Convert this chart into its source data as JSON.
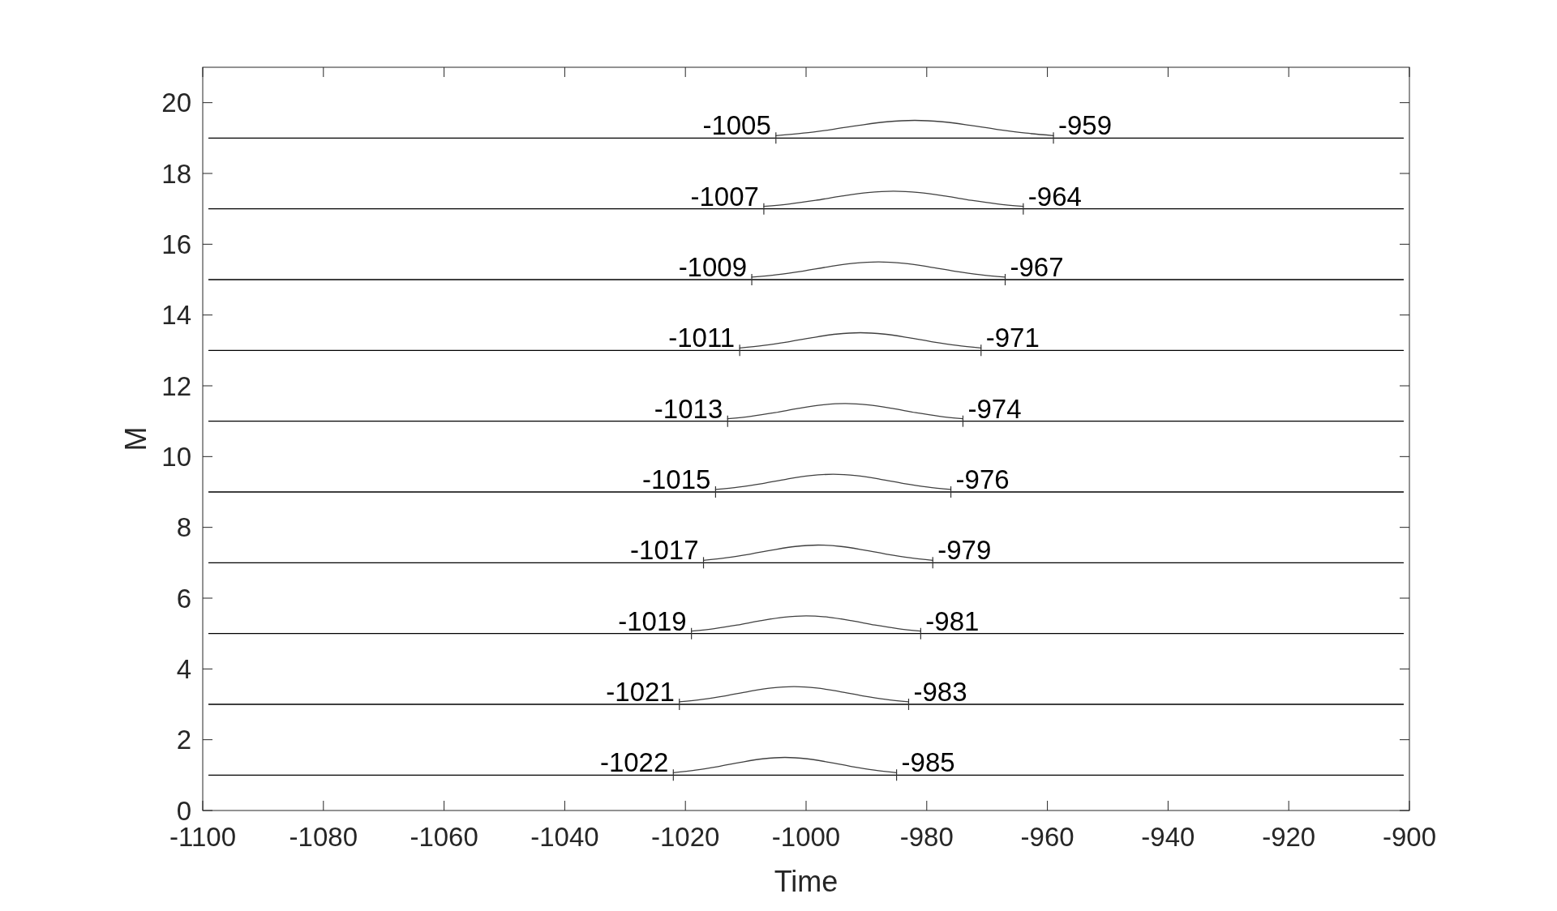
{
  "chart_data": {
    "type": "line",
    "xlabel": "Time",
    "ylabel": "M",
    "xlim": [
      -1100,
      -900
    ],
    "xticks": [
      -1100,
      -1080,
      -1060,
      -1040,
      -1020,
      -1000,
      -980,
      -960,
      -940,
      -920,
      -900
    ],
    "ylim": [
      0,
      21
    ],
    "yticks": [
      0,
      2,
      4,
      6,
      8,
      10,
      12,
      14,
      16,
      18,
      20
    ],
    "grid": false,
    "marker": "none",
    "line_style": "solid",
    "series": [
      {
        "color": "#000000",
        "x": [
          -1099,
          -901
        ],
        "values": [
          19,
          19
        ]
      },
      {
        "color": "#000000",
        "x": [
          -1099,
          -901
        ],
        "values": [
          17,
          17
        ]
      },
      {
        "color": "#000000",
        "x": [
          -1099,
          -901
        ],
        "values": [
          15,
          15
        ]
      },
      {
        "color": "#000000",
        "x": [
          -1099,
          -901
        ],
        "values": [
          13,
          13
        ]
      },
      {
        "color": "#000000",
        "x": [
          -1099,
          -901
        ],
        "values": [
          11,
          11
        ]
      },
      {
        "color": "#000000",
        "x": [
          -1099,
          -901
        ],
        "values": [
          9,
          9
        ]
      },
      {
        "color": "#000000",
        "x": [
          -1099,
          -901
        ],
        "values": [
          7,
          7
        ]
      },
      {
        "color": "#000000",
        "x": [
          -1099,
          -901
        ],
        "values": [
          5,
          5
        ]
      },
      {
        "color": "#000000",
        "x": [
          -1099,
          -901
        ],
        "values": [
          3,
          3
        ]
      },
      {
        "color": "#000000",
        "x": [
          -1099,
          -901
        ],
        "values": [
          1,
          1
        ]
      },
      {
        "color": "#404040",
        "x": [
          -1005,
          -1000.4,
          -995.8,
          -991.2,
          -986.6,
          -982,
          -977.4,
          -972.8,
          -968.2,
          -963.6,
          -959
        ],
        "values": [
          19.07,
          19.14,
          19.24,
          19.36,
          19.46,
          19.5,
          19.46,
          19.36,
          19.24,
          19.14,
          19.07
        ]
      },
      {
        "color": "#404040",
        "x": [
          -1007,
          -1002.7,
          -998.4,
          -994.1,
          -989.8,
          -985.5,
          -981.2,
          -976.9,
          -972.6,
          -968.3,
          -964
        ],
        "values": [
          17.07,
          17.14,
          17.24,
          17.36,
          17.46,
          17.5,
          17.46,
          17.36,
          17.24,
          17.14,
          17.07
        ]
      },
      {
        "color": "#404040",
        "x": [
          -1009,
          -1004.8,
          -1000.6,
          -996.4,
          -992.2,
          -988,
          -983.8,
          -979.6,
          -975.4,
          -971.2,
          -967
        ],
        "values": [
          15.07,
          15.14,
          15.24,
          15.36,
          15.46,
          15.5,
          15.46,
          15.36,
          15.24,
          15.14,
          15.07
        ]
      },
      {
        "color": "#404040",
        "x": [
          -1011,
          -1007,
          -1003,
          -999,
          -995,
          -991,
          -987,
          -983,
          -979,
          -975,
          -971
        ],
        "values": [
          13.07,
          13.14,
          13.24,
          13.36,
          13.46,
          13.5,
          13.46,
          13.36,
          13.24,
          13.14,
          13.07
        ]
      },
      {
        "color": "#404040",
        "x": [
          -1013,
          -1009.1,
          -1005.2,
          -1001.3,
          -997.4,
          -993.5,
          -989.6,
          -985.7,
          -981.8,
          -977.9,
          -974
        ],
        "values": [
          11.07,
          11.14,
          11.24,
          11.36,
          11.46,
          11.5,
          11.46,
          11.36,
          11.24,
          11.14,
          11.07
        ]
      },
      {
        "color": "#404040",
        "x": [
          -1015,
          -1011.1,
          -1007.2,
          -1003.3,
          -999.4,
          -995.5,
          -991.6,
          -987.7,
          -983.8,
          -979.9,
          -976
        ],
        "values": [
          9.07,
          9.14,
          9.24,
          9.36,
          9.46,
          9.5,
          9.46,
          9.36,
          9.24,
          9.14,
          9.07
        ]
      },
      {
        "color": "#404040",
        "x": [
          -1017,
          -1013.2,
          -1009.4,
          -1005.6,
          -1001.8,
          -998,
          -994.2,
          -990.4,
          -986.6,
          -982.8,
          -979
        ],
        "values": [
          7.07,
          7.14,
          7.24,
          7.36,
          7.46,
          7.5,
          7.46,
          7.36,
          7.24,
          7.14,
          7.07
        ]
      },
      {
        "color": "#404040",
        "x": [
          -1019,
          -1015.2,
          -1011.4,
          -1007.6,
          -1003.8,
          -1000,
          -996.2,
          -992.4,
          -988.6,
          -984.8,
          -981
        ],
        "values": [
          5.07,
          5.14,
          5.24,
          5.36,
          5.46,
          5.5,
          5.46,
          5.36,
          5.24,
          5.14,
          5.07
        ]
      },
      {
        "color": "#404040",
        "x": [
          -1021,
          -1017.2,
          -1013.4,
          -1009.6,
          -1005.8,
          -1002,
          -998.2,
          -994.4,
          -990.6,
          -986.8,
          -983
        ],
        "values": [
          3.07,
          3.14,
          3.24,
          3.36,
          3.46,
          3.5,
          3.46,
          3.36,
          3.24,
          3.14,
          3.07
        ]
      },
      {
        "color": "#404040",
        "x": [
          -1022,
          -1018.3,
          -1014.6,
          -1010.9,
          -1007.2,
          -1003.5,
          -999.8,
          -996.1,
          -992.4,
          -988.7,
          -985
        ],
        "values": [
          1.07,
          1.14,
          1.24,
          1.36,
          1.46,
          1.5,
          1.46,
          1.36,
          1.24,
          1.14,
          1.07
        ]
      }
    ],
    "annotations": [
      {
        "text": "-1005",
        "x": -1005,
        "y": 19
      },
      {
        "text": "-959",
        "x": -959,
        "y": 19
      },
      {
        "text": "-1007",
        "x": -1007,
        "y": 17
      },
      {
        "text": "-964",
        "x": -964,
        "y": 17
      },
      {
        "text": "-1009",
        "x": -1009,
        "y": 15
      },
      {
        "text": "-967",
        "x": -967,
        "y": 15
      },
      {
        "text": "-1011",
        "x": -1011,
        "y": 13
      },
      {
        "text": "-971",
        "x": -971,
        "y": 13
      },
      {
        "text": "-1013",
        "x": -1013,
        "y": 11
      },
      {
        "text": "-974",
        "x": -974,
        "y": 11
      },
      {
        "text": "-1015",
        "x": -1015,
        "y": 9
      },
      {
        "text": "-976",
        "x": -976,
        "y": 9
      },
      {
        "text": "-1017",
        "x": -1017,
        "y": 7
      },
      {
        "text": "-979",
        "x": -979,
        "y": 7
      },
      {
        "text": "-1019",
        "x": -1019,
        "y": 5
      },
      {
        "text": "-981",
        "x": -981,
        "y": 5
      },
      {
        "text": "-1021",
        "x": -1021,
        "y": 3
      },
      {
        "text": "-983",
        "x": -983,
        "y": 3
      },
      {
        "text": "-1022",
        "x": -1022,
        "y": 1
      },
      {
        "text": "-985",
        "x": -985,
        "y": 1
      }
    ]
  }
}
